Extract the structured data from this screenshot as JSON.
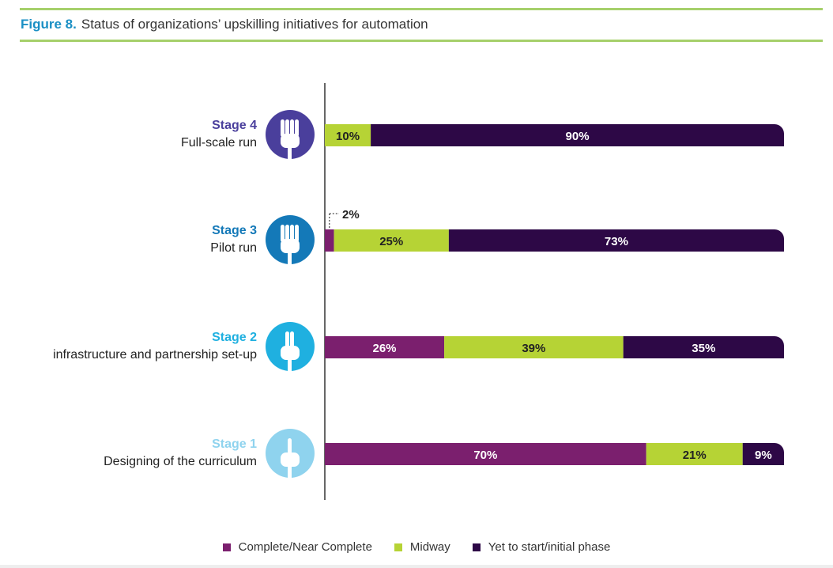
{
  "figure": {
    "number": "Figure 8.",
    "title": "Status of organizations’ upskilling initiatives for automation"
  },
  "colors": {
    "complete": "#7b1f6e",
    "midway": "#b6d335",
    "yet": "#2d0846",
    "stage4": "#4a3f9c",
    "stage3": "#1479b8",
    "stage2": "#1fb0e0",
    "stage1": "#8fd3ee",
    "axis": "#333333"
  },
  "chart_data": {
    "type": "bar",
    "orientation": "horizontal",
    "stacked": true,
    "unit": "%",
    "xlim": [
      0,
      100
    ],
    "categories": [
      {
        "stage": "Stage 4",
        "label": "Full-scale run",
        "icon": "hand-icon",
        "color_key": "stage4"
      },
      {
        "stage": "Stage 3",
        "label": "Pilot run",
        "icon": "hand-icon",
        "color_key": "stage3"
      },
      {
        "stage": "Stage 2",
        "label": "infrastructure and partnership set-up",
        "icon": "hand-icon",
        "color_key": "stage2"
      },
      {
        "stage": "Stage 1",
        "label": "Designing of the curriculum",
        "icon": "hand-icon",
        "color_key": "stage1"
      }
    ],
    "series": [
      {
        "name": "Complete/Near Complete",
        "color_key": "complete",
        "values": [
          0,
          2,
          26,
          70
        ]
      },
      {
        "name": "Midway",
        "color_key": "midway",
        "values": [
          10,
          25,
          39,
          21
        ]
      },
      {
        "name": "Yet to start/initial phase",
        "color_key": "yet",
        "values": [
          90,
          73,
          35,
          9
        ]
      }
    ],
    "data_labels": [
      [
        "",
        "10%",
        "90%"
      ],
      [
        "2%",
        "25%",
        "73%"
      ],
      [
        "26%",
        "39%",
        "35%"
      ],
      [
        "70%",
        "21%",
        "9%"
      ]
    ],
    "legend_position": "bottom",
    "grid": false
  }
}
